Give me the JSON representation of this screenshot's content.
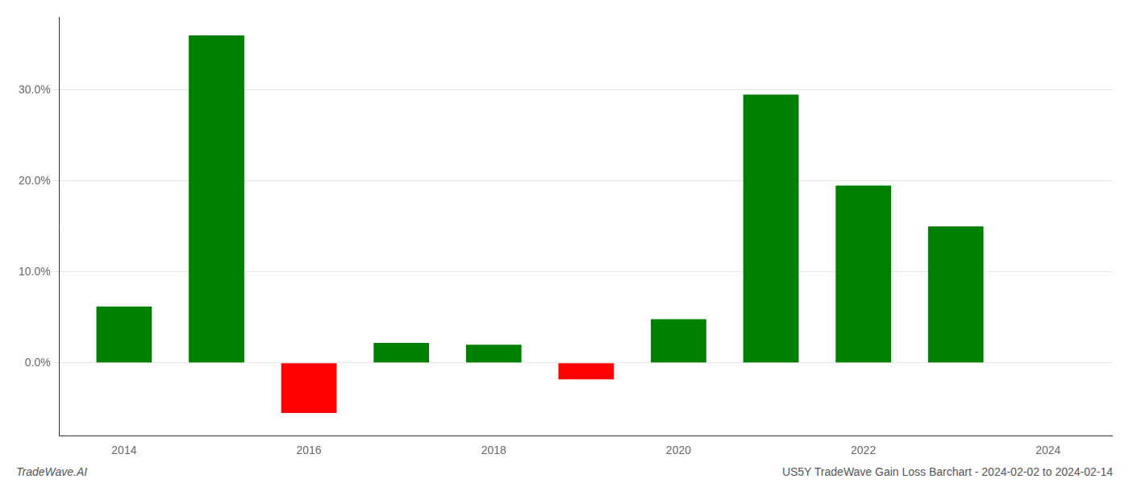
{
  "chart_data": {
    "type": "bar",
    "x": [
      2014,
      2015,
      2016,
      2017,
      2018,
      2019,
      2020,
      2021,
      2022,
      2023
    ],
    "values": [
      0.062,
      0.36,
      -0.055,
      0.022,
      0.02,
      -0.018,
      0.048,
      0.295,
      0.195,
      0.15
    ],
    "colors": [
      "#008000",
      "#008000",
      "#ff0000",
      "#008000",
      "#008000",
      "#ff0000",
      "#008000",
      "#008000",
      "#008000",
      "#008000"
    ],
    "xlim": [
      2013.3,
      2024.7
    ],
    "xticks": [
      2014,
      2016,
      2018,
      2020,
      2022,
      2024
    ],
    "ylim": [
      -0.08,
      0.38
    ],
    "yticks": [
      {
        "value": 0.0,
        "label": "0.0%"
      },
      {
        "value": 0.1,
        "label": "10.0%"
      },
      {
        "value": 0.2,
        "label": "20.0%"
      },
      {
        "value": 0.3,
        "label": "30.0%"
      }
    ],
    "grid": true,
    "annotations": [
      "TradeWave.AI",
      "US5Y TradeWave Gain Loss Barchart - 2024-02-02 to 2024-02-14"
    ]
  }
}
